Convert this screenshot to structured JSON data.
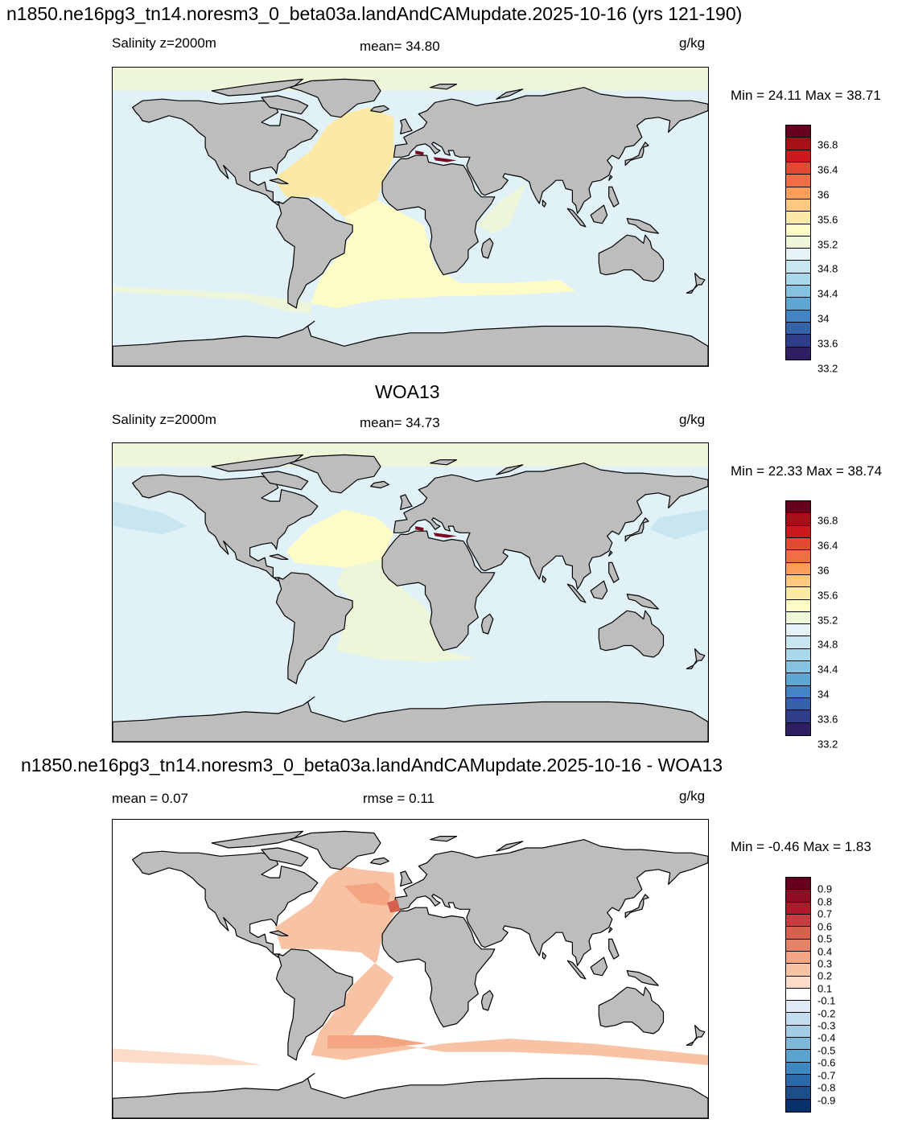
{
  "panels": [
    {
      "title": "n1850.ne16pg3_tn14.noresm3_0_beta03a.landAndCAMupdate.2025-10-16 (yrs 121-190)",
      "left_label": "Salinity z=2000m",
      "center_label": "mean=  34.80",
      "units": "g/kg",
      "minmax": "Min =  24.11 Max =  38.71",
      "colorbar": {
        "ticks": [
          "36.8",
          "36.4",
          "36",
          "35.6",
          "35.2",
          "34.8",
          "34.4",
          "34",
          "33.6",
          "33.2"
        ],
        "colors": [
          "#67001f",
          "#a50f15",
          "#cb181d",
          "#e34a33",
          "#f06e46",
          "#fc9d5a",
          "#fdc981",
          "#fde9a6",
          "#fefcc6",
          "#eef6d9",
          "#e5f3f6",
          "#c7e6f0",
          "#a8d8ea",
          "#86c3e2",
          "#5fa6d3",
          "#4384c2",
          "#3461a8",
          "#2f3d8b",
          "#2d1f5f"
        ]
      }
    },
    {
      "title": "WOA13",
      "left_label": "Salinity z=2000m",
      "center_label": "mean=  34.73",
      "units": "g/kg",
      "minmax": "Min =  22.33 Max =  38.74",
      "colorbar": {
        "ticks": [
          "36.8",
          "36.4",
          "36",
          "35.6",
          "35.2",
          "34.8",
          "34.4",
          "34",
          "33.6",
          "33.2"
        ],
        "colors": [
          "#67001f",
          "#a50f15",
          "#cb181d",
          "#e34a33",
          "#f06e46",
          "#fc9d5a",
          "#fdc981",
          "#fde9a6",
          "#fefcc6",
          "#eef6d9",
          "#e5f3f6",
          "#c7e6f0",
          "#a8d8ea",
          "#86c3e2",
          "#5fa6d3",
          "#4384c2",
          "#3461a8",
          "#2f3d8b",
          "#2d1f5f"
        ]
      }
    },
    {
      "title": "n1850.ne16pg3_tn14.noresm3_0_beta03a.landAndCAMupdate.2025-10-16 - WOA13",
      "left_label": "mean =   0.07",
      "center_label": "rmse =   0.11",
      "units": "g/kg",
      "minmax": "Min =  -0.46 Max =   1.83",
      "colorbar": {
        "ticks": [
          "0.9",
          "0.8",
          "0.7",
          "0.6",
          "0.5",
          "0.4",
          "0.3",
          "0.2",
          "0.1",
          "-0.1",
          "-0.2",
          "-0.3",
          "-0.4",
          "-0.5",
          "-0.6",
          "-0.7",
          "-0.8",
          "-0.9"
        ],
        "colors": [
          "#67001f",
          "#8e0d25",
          "#b2182b",
          "#c63c3f",
          "#d6604d",
          "#e58368",
          "#f4a582",
          "#f8c3a5",
          "#fcdcc9",
          "#ffffff",
          "#deebf7",
          "#c1ddee",
          "#a3cde5",
          "#7fb9da",
          "#5aa2cf",
          "#3d88c0",
          "#2a6aa9",
          "#1c4f8a",
          "#08306b"
        ]
      }
    }
  ],
  "colors": {
    "land": "#bdbdbd",
    "coast": "#000000",
    "ocean_main": "#e0f1f8",
    "ocean_upper_atlantic_model": "#fde9a6",
    "ocean_south_atlantic_model": "#fefcc6",
    "ocean_arctic": "#eef6d9",
    "ocean_diff_base": "#ffffff",
    "ocean_diff_pos": "#f8c3a5",
    "ocean_diff_strong": "#f4a582"
  }
}
